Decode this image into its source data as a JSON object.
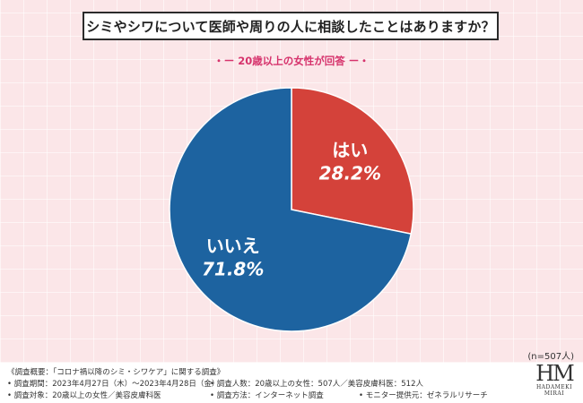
{
  "title": "シミやシワについて医師や周りの人に相談したことはありますか？",
  "subtitle": "・ー 20歳以上の女性が回答 ー・",
  "n_label": "(n=507人)",
  "colors": {
    "yes": "#d4423a",
    "no": "#1d63a0",
    "subtitle": "#d6336c"
  },
  "chart_data": {
    "type": "pie",
    "title": "シミやシワについて医師や周りの人に相談したことはありますか？",
    "slices": [
      {
        "label": "はい",
        "value": 28.2,
        "value_text": "28.2%"
      },
      {
        "label": "いいえ",
        "value": 71.8,
        "value_text": "71.8%"
      }
    ]
  },
  "footer": {
    "survey_overview": "《調査概要：「コロナ禍以降のシミ・シワケア」に関する調査》",
    "period": "• 調査期間：2023年4月27日（木）〜2023年4月28日（金）",
    "respondents": "• 調査人数：20歳以上の女性：507人／美容皮膚科医：512人",
    "target": "• 調査対象：20歳以上の女性／美容皮膚科医",
    "method": "• 調査方法：インターネット調査",
    "provider": "• モニター提供元：ゼネラルリサーチ"
  },
  "logo": {
    "mark": "HM",
    "line1": "HADAMEKI",
    "line2": "MIRAI"
  }
}
